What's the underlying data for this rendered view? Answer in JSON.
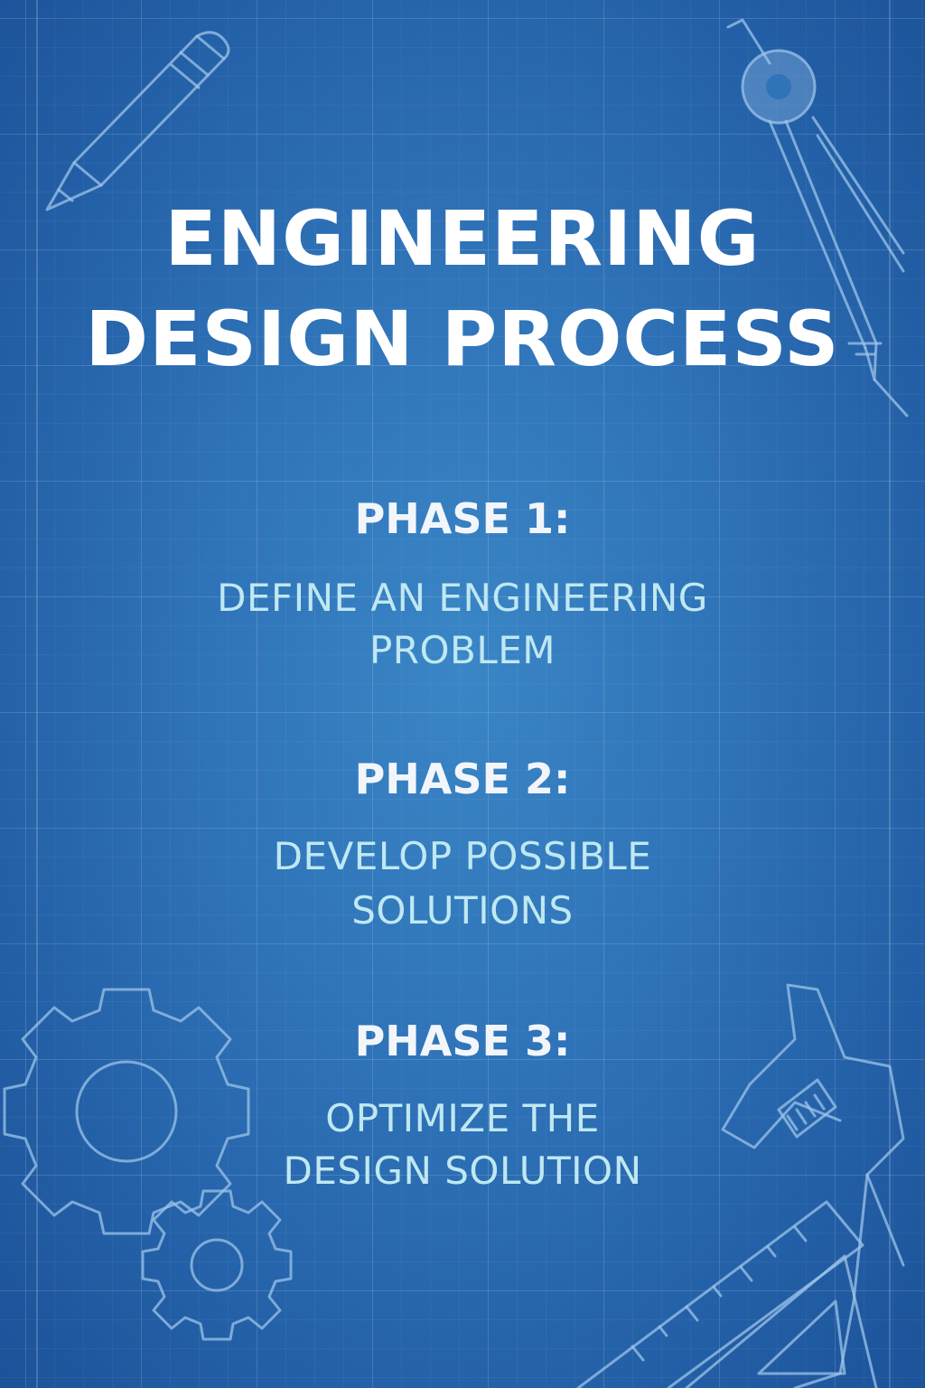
{
  "poster": {
    "title_line1": "ENGINEERING",
    "title_line2": "DESIGN PROCESS"
  },
  "phases": [
    {
      "heading": "PHASE 1:",
      "line1": "DEFINE AN ENGINEERING",
      "line2": "PROBLEM"
    },
    {
      "heading": "PHASE 2:",
      "line1": "DEVELOP POSSIBLE",
      "line2": "SOLUTIONS"
    },
    {
      "heading": "PHASE 3:",
      "line1": "OPTIMIZE THE",
      "line2": "DESIGN SOLUTION"
    }
  ],
  "decorations": [
    "pencil-icon",
    "compass-icon",
    "gear-icon",
    "wrench-icon",
    "ruler-icon",
    "set-square-icon"
  ],
  "colors": {
    "background": "#2f73b8",
    "title": "#ffffff",
    "phase_heading": "#f2f6fb",
    "phase_text": "#bfe8f2",
    "line_art": "#9cc4ea"
  }
}
